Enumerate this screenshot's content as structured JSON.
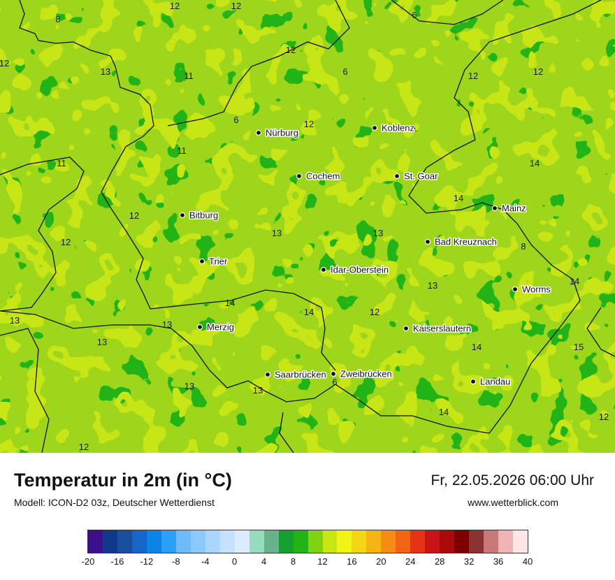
{
  "map": {
    "cities": [
      {
        "name": "Nürburg"
      },
      {
        "name": "Koblenz"
      },
      {
        "name": "Cochem"
      },
      {
        "name": "St. Goar"
      },
      {
        "name": "Bitburg"
      },
      {
        "name": "Mainz"
      },
      {
        "name": "Bad Kreuznach"
      },
      {
        "name": "Trier"
      },
      {
        "name": "Idar-Oberstein"
      },
      {
        "name": "Worms"
      },
      {
        "name": "Merzig"
      },
      {
        "name": "Kaiserslautern"
      },
      {
        "name": "Saarbrücken"
      },
      {
        "name": "Zweibrücken"
      },
      {
        "name": "Landau"
      }
    ],
    "values": [
      "8",
      "12",
      "12",
      "11",
      "6",
      "12",
      "13",
      "11",
      "6",
      "12",
      "12",
      "6",
      "12",
      "11",
      "12",
      "14",
      "11",
      "14",
      "12",
      "13",
      "13",
      "12",
      "8",
      "13",
      "14",
      "14",
      "12",
      "13",
      "13",
      "14",
      "15",
      "13",
      "13",
      "6",
      "14",
      "12",
      "13",
      "14",
      "12"
    ]
  },
  "footer": {
    "title": "Temperatur in 2m (in °C)",
    "model": "Modell: ICON-D2 03z, Deutscher Wetterdienst",
    "datetime": "Fr, 22.05.2026 06:00 Uhr",
    "site": "www.wetterblick.com"
  },
  "legend": {
    "colors": [
      "#3d0f8a",
      "#0f3a8c",
      "#1a4fa0",
      "#1666c8",
      "#0a84e6",
      "#2ca0f5",
      "#6ebaf8",
      "#8cc8fa",
      "#aad6fc",
      "#c4e2fd",
      "#dcecfe",
      "#96dcbe",
      "#66b48c",
      "#16a032",
      "#22b416",
      "#80d214",
      "#c8e614",
      "#f0f514",
      "#f5d614",
      "#f5b414",
      "#f58c14",
      "#f06414",
      "#e63214",
      "#c81414",
      "#aa0a0a",
      "#7d0000",
      "#8c3232",
      "#c87878",
      "#f0b4b4",
      "#ffe6e6"
    ],
    "ticks": [
      "-20",
      "-16",
      "-12",
      "-8",
      "-4",
      "0",
      "4",
      "8",
      "12",
      "16",
      "20",
      "24",
      "28",
      "32",
      "36",
      "40"
    ]
  }
}
